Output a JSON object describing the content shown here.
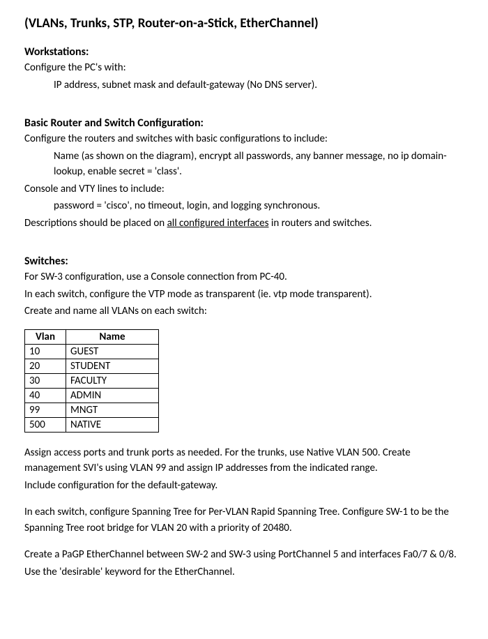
{
  "title": "(VLANs, Trunks, STP, Router-on-a-Stick, EtherChannel)",
  "workstations": {
    "head": "Workstations:",
    "line1": "Configure the PC's with:",
    "line2": "IP address, subnet mask and default-gateway (No DNS server)."
  },
  "basic": {
    "head": "Basic Router and Switch Configuration:",
    "line1": "Configure the routers and switches with basic configurations to include:",
    "line2": "Name (as shown on the diagram), encrypt all passwords, any banner message, no ip domain-lookup, enable secret = 'class'.",
    "line3": "Console and VTY lines to include:",
    "line4": "password = 'cisco', no timeout, login, and logging synchronous.",
    "line5a": "Descriptions should be placed on ",
    "line5u": "all configured interfaces",
    "line5b": " in routers and switches."
  },
  "switches": {
    "head": "Switches:",
    "line1": "For SW-3 configuration, use a Console connection from PC-40.",
    "line2": "In each switch, configure the VTP mode as transparent (ie. vtp mode transparent).",
    "line3": "Create and name all VLANs on each switch:"
  },
  "vlan_table": {
    "col1": "Vlan",
    "col2": "Name",
    "rows": [
      {
        "vlan": "10",
        "name": "GUEST"
      },
      {
        "vlan": "20",
        "name": "STUDENT"
      },
      {
        "vlan": "30",
        "name": "FACULTY"
      },
      {
        "vlan": "40",
        "name": "ADMIN"
      },
      {
        "vlan": "99",
        "name": "MNGT"
      },
      {
        "vlan": "500",
        "name": "NATIVE"
      }
    ]
  },
  "post": {
    "p1": "Assign access ports and trunk ports as needed. For the trunks, use Native VLAN 500. Create management SVI's using VLAN 99 and assign IP addresses from the indicated range.",
    "p1b": "Include configuration for the default-gateway.",
    "p2": "In each switch, configure Spanning Tree for Per-VLAN Rapid Spanning Tree. Configure SW-1 to be the Spanning Tree root bridge for VLAN 20 with a priority of 20480.",
    "p3": "Create a PaGP EtherChannel between SW-2 and SW-3 using PortChannel 5 and interfaces Fa0/7 & 0/8.",
    "p3b": "Use the 'desirable' keyword for the EtherChannel."
  }
}
